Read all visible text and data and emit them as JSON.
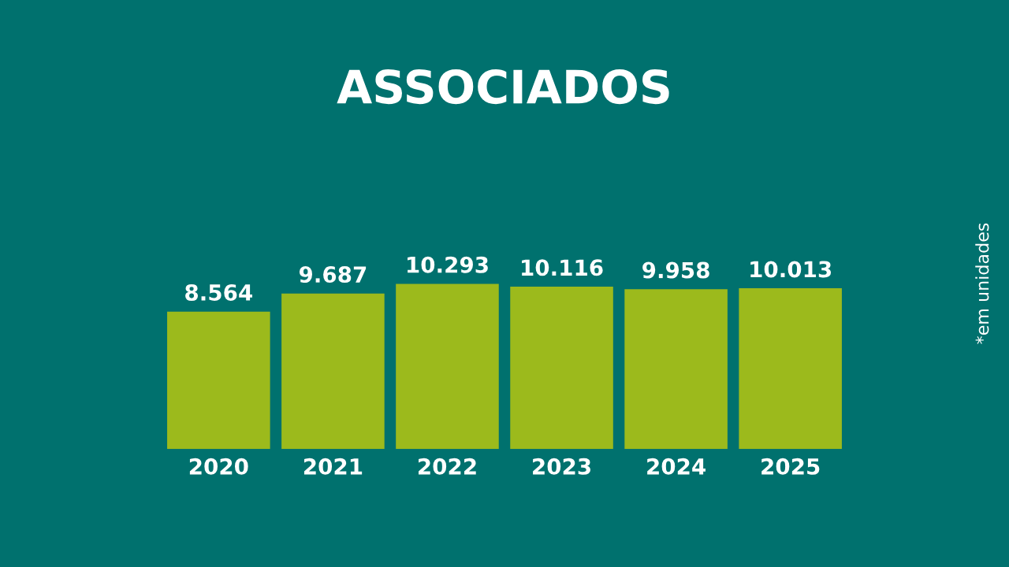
{
  "chart_data": {
    "type": "bar",
    "title": "ASSOCIADOS",
    "categories": [
      "2020",
      "2021",
      "2022",
      "2023",
      "2024",
      "2025"
    ],
    "values": [
      8564,
      9687,
      10293,
      10116,
      9958,
      10013
    ],
    "value_labels": [
      "8.564",
      "9.687",
      "10.293",
      "10.116",
      "9.958",
      "10.013"
    ],
    "color": "#9cba1c",
    "tick_labels": "x",
    "grid": false,
    "legend": false,
    "annotations": [
      "*em unidades"
    ]
  }
}
